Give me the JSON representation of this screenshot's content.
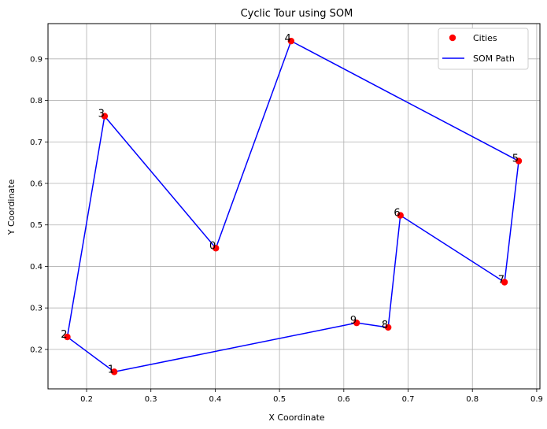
{
  "chart_data": {
    "type": "scatter",
    "title": "Cyclic Tour using SOM",
    "xlabel": "X Coordinate",
    "ylabel": "Y Coordinate",
    "xlim": [
      0.14,
      0.905
    ],
    "ylim": [
      0.105,
      0.985
    ],
    "xticks": [
      0.2,
      0.3,
      0.4,
      0.5,
      0.6,
      0.7,
      0.8,
      0.9
    ],
    "yticks": [
      0.2,
      0.3,
      0.4,
      0.5,
      0.6,
      0.7,
      0.8,
      0.9
    ],
    "grid": true,
    "legend_position": "top-right",
    "cities": [
      {
        "label": "0",
        "x": 0.401,
        "y": 0.444
      },
      {
        "label": "1",
        "x": 0.243,
        "y": 0.146
      },
      {
        "label": "2",
        "x": 0.17,
        "y": 0.23
      },
      {
        "label": "3",
        "x": 0.228,
        "y": 0.762
      },
      {
        "label": "4",
        "x": 0.518,
        "y": 0.943
      },
      {
        "label": "5",
        "x": 0.872,
        "y": 0.654
      },
      {
        "label": "6",
        "x": 0.688,
        "y": 0.523
      },
      {
        "label": "7",
        "x": 0.85,
        "y": 0.362
      },
      {
        "label": "8",
        "x": 0.669,
        "y": 0.253
      },
      {
        "label": "9",
        "x": 0.62,
        "y": 0.264
      }
    ],
    "path_order": [
      0,
      3,
      2,
      1,
      9,
      8,
      6,
      7,
      5,
      4,
      0
    ],
    "series": [
      {
        "name": "Cities",
        "kind": "scatter",
        "color": "#ff0000"
      },
      {
        "name": "SOM Path",
        "kind": "line",
        "color": "#0000ff"
      }
    ]
  }
}
